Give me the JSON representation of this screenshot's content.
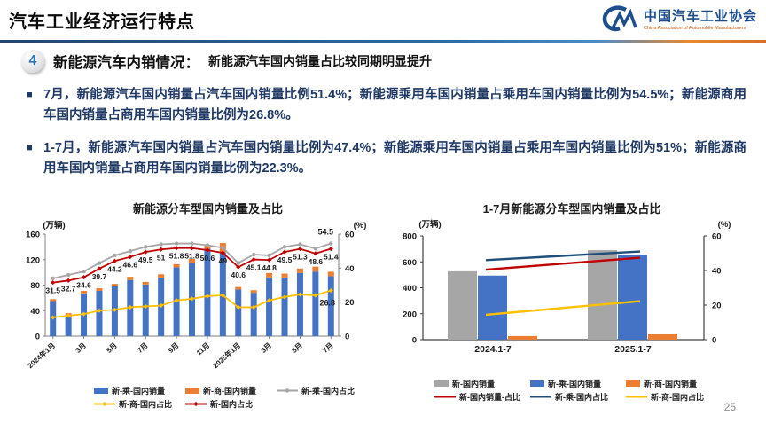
{
  "header": {
    "title": "汽车工业经济运行特点",
    "logo": {
      "org_cn": "中国汽车工业协会",
      "org_en": "China Association of Automobile Manufacturers"
    }
  },
  "section": {
    "number": "4",
    "heading": "新能源汽车内销情况：",
    "subheading": "新能源汽车国内销量占比较同期明显提升"
  },
  "bullets": [
    "7月，新能源汽车国内销量占汽车国内销量比例51.4%；新能源乘用车国内销量占乘用车国内销量比例为54.5%；新能源商用车国内销量占商用车国内销量比例为26.8%。",
    "1-7月，新能源汽车国内销量占汽车国内销量比例为47.4%；新能源乘用车国内销量占乘用车国内销量比例为51%；新能源商用车国内销量占商用车国内销量比例为22.3%。"
  ],
  "page_number": "25",
  "colors": {
    "bar_blue": "#4472C4",
    "bar_orange": "#ED7D31",
    "bar_gray": "#A6A6A6",
    "line_red": "#C00000",
    "line_gray": "#A6A6A6",
    "line_yellow": "#FFC000",
    "line_navy": "#1F4E79",
    "bullet_text": "#1F3864",
    "logo_blue": "#1F4E8C",
    "logo_orange": "#C55A11"
  },
  "chart_data": [
    {
      "type": "bar",
      "subtype": "monthly combo bar+line, bars stacked, lines on right axis",
      "title": "新能源分车型国内销量及占比",
      "unit_left": "(万辆)",
      "unit_right": "(%)",
      "ylim_left": [
        0,
        160
      ],
      "yticks_left": [
        0,
        40,
        80,
        120,
        160
      ],
      "ylim_right": [
        0,
        60
      ],
      "yticks_right": [
        0,
        20,
        40,
        60
      ],
      "categories": [
        "2024年1月",
        "2月",
        "3月",
        "4月",
        "5月",
        "6月",
        "7月",
        "8月",
        "9月",
        "10月",
        "11月",
        "12月",
        "2025年1月",
        "2月",
        "3月",
        "4月",
        "5月",
        "6月",
        "7月"
      ],
      "x_tick_labels": [
        "2024年1月",
        "3月",
        "5月",
        "7月",
        "9月",
        "11月",
        "2025年1月",
        "3月",
        "5月",
        "7月"
      ],
      "bar_series": [
        {
          "name": "新-乘-国内销量",
          "color": "#4472C4",
          "values": [
            55,
            32,
            67,
            71,
            78,
            88,
            81,
            92,
            108,
            115,
            137,
            131,
            73,
            68,
            92,
            92,
            99,
            101,
            94
          ]
        },
        {
          "name": "新-商-国内销量",
          "color": "#ED7D31",
          "stacked": true,
          "values": [
            3,
            4,
            4,
            4,
            4,
            5,
            4,
            5,
            5,
            6,
            6,
            15,
            4,
            4,
            7,
            6,
            7,
            8,
            7
          ]
        }
      ],
      "line_series": [
        {
          "name": "新-乘-国内占比",
          "color": "#A6A6A6",
          "marker": "circle",
          "values": [
            34,
            36,
            38,
            43,
            47.5,
            50,
            52.5,
            54,
            54.5,
            54.5,
            53.5,
            52,
            43,
            48,
            47.5,
            52.5,
            54,
            51.5,
            54.5
          ],
          "last_label": "54.5",
          "last_label_offset": [
            -6,
            -10
          ]
        },
        {
          "name": "新-商-国内占比",
          "color": "#FFC000",
          "marker": "diamond",
          "values": [
            11,
            12,
            13,
            15,
            15.5,
            17,
            17.5,
            18,
            21,
            22,
            23.5,
            24,
            17,
            17,
            21,
            23,
            24.5,
            24,
            26.8
          ],
          "last_label": "26.8",
          "last_label_offset": [
            -4,
            17
          ]
        },
        {
          "name": "新-国内占比",
          "color": "#C00000",
          "marker": "diamond",
          "values": [
            31.5,
            32.7,
            34.6,
            39.7,
            44.2,
            46.6,
            49.5,
            51,
            51.8,
            51.8,
            50.6,
            49,
            40.6,
            45.1,
            44.8,
            49.5,
            51.3,
            48.6,
            51.4
          ],
          "labels": [
            "31.5",
            "32.7",
            "34.6",
            "39.7",
            "44.2",
            "46.6",
            "49.5",
            "51",
            "51.8",
            "51.8",
            "50.6",
            "49",
            "40.6",
            "45.1",
            "44.8",
            "49.5",
            "51.3",
            "48.6",
            "51.4"
          ]
        }
      ],
      "legend_rows": [
        [
          {
            "label": "新-乘-国内销量",
            "swatch": "bar",
            "color": "#4472C4"
          },
          {
            "label": "新-商-国内销量",
            "swatch": "bar",
            "color": "#ED7D31"
          },
          {
            "label": "新-乘-国内占比",
            "swatch": "line",
            "marker": "circle",
            "color": "#A6A6A6"
          }
        ],
        [
          {
            "label": "新-商-国内占比",
            "swatch": "line",
            "marker": "diamond",
            "color": "#FFC000"
          },
          {
            "label": "新-国内占比",
            "swatch": "line",
            "marker": "diamond",
            "color": "#C00000"
          }
        ]
      ]
    },
    {
      "type": "bar",
      "subtype": "grouped bars (year-to-date comparison) + share lines on right axis",
      "title": "1-7月新能源分车型国内销量及占比",
      "unit_left": "(万辆)",
      "unit_right": "(%)",
      "ylim_left": [
        0,
        800
      ],
      "yticks_left": [
        0,
        200,
        400,
        600,
        800
      ],
      "ylim_right": [
        0,
        60
      ],
      "yticks_right": [
        0,
        20,
        40,
        60
      ],
      "categories": [
        "2024.1-7",
        "2025.1-7"
      ],
      "bar_series": [
        {
          "name": "新-国内销量",
          "color": "#A6A6A6",
          "values": [
            527,
            690
          ]
        },
        {
          "name": "新-乘-国内销量",
          "color": "#4472C4",
          "values": [
            494,
            653
          ]
        },
        {
          "name": "新-商-国内销量",
          "color": "#ED7D31",
          "values": [
            28,
            41
          ]
        }
      ],
      "line_series": [
        {
          "name": "新-国内销量-占比",
          "color": "#C00000",
          "values": [
            40.5,
            47.4
          ]
        },
        {
          "name": "新-乘-国内占比",
          "color": "#1F4E79",
          "values": [
            46,
            51
          ]
        },
        {
          "name": "新-商-国内占比",
          "color": "#FFC000",
          "values": [
            14.4,
            22.3
          ]
        }
      ],
      "legend_rows": [
        [
          {
            "label": "新-国内销量",
            "swatch": "bar",
            "color": "#A6A6A6"
          },
          {
            "label": "新-乘-国内销量",
            "swatch": "bar",
            "color": "#4472C4"
          },
          {
            "label": "新-商-国内销量",
            "swatch": "bar",
            "color": "#ED7D31"
          }
        ],
        [
          {
            "label": "新-国内销量-占比",
            "swatch": "line",
            "marker": "none",
            "color": "#C00000"
          },
          {
            "label": "新-乘-国内占比",
            "swatch": "line",
            "marker": "none",
            "color": "#1F4E79"
          },
          {
            "label": "新-商-国内占比",
            "swatch": "line",
            "marker": "none",
            "color": "#FFC000"
          }
        ]
      ]
    }
  ]
}
